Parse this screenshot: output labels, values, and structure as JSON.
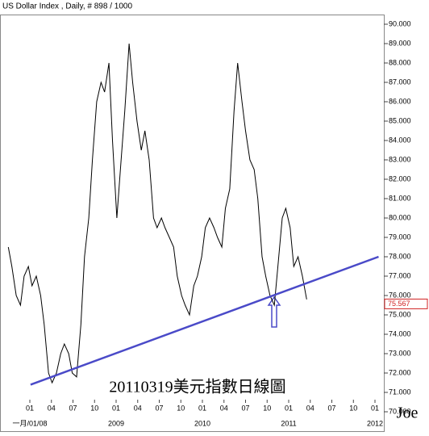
{
  "chart_data": {
    "type": "line",
    "title": "US Dollar Index , Daily, # 898 / 1000",
    "annotation": "20110319美元指數日線圖",
    "signature": "Joe",
    "color": "#000000",
    "x": [
      -3.0,
      -2.5,
      -1.9,
      -1.3,
      -0.8,
      -0.2,
      0.3,
      0.9,
      1.5,
      2.0,
      2.6,
      3.1,
      3.7,
      4.3,
      4.8,
      5.4,
      5.9,
      6.5,
      7.1,
      7.6,
      8.2,
      8.7,
      9.3,
      9.9,
      10.4,
      11.0,
      11.5,
      12.1,
      12.7,
      13.2,
      13.8,
      14.3,
      14.9,
      15.5,
      16.0,
      16.6,
      17.2,
      17.7,
      18.3,
      18.8,
      19.4,
      20.0,
      20.5,
      21.1,
      21.6,
      22.2,
      22.8,
      23.3,
      23.9,
      24.4,
      25.0,
      25.6,
      26.1,
      26.7,
      27.2,
      27.8,
      28.4,
      28.9,
      29.5,
      30.0,
      30.6,
      31.2,
      31.7,
      32.3,
      32.8,
      33.4,
      34.0,
      34.5,
      35.1,
      35.6,
      36.2,
      36.7,
      37.3,
      37.9,
      38.5
    ],
    "values": [
      78.5,
      77.5,
      76.0,
      75.5,
      77.0,
      77.5,
      76.5,
      77.0,
      76.0,
      74.5,
      72.0,
      71.5,
      72.0,
      73.0,
      73.5,
      73.0,
      72.0,
      71.8,
      74.5,
      78.0,
      80.0,
      83.0,
      86.0,
      87.0,
      86.5,
      88.0,
      84.0,
      80.0,
      83.0,
      85.5,
      89.0,
      87.0,
      85.0,
      83.5,
      84.5,
      83.0,
      80.0,
      79.5,
      80.0,
      79.5,
      79.0,
      78.5,
      77.0,
      76.0,
      75.5,
      75.0,
      76.5,
      77.0,
      78.0,
      79.5,
      80.0,
      79.5,
      79.0,
      78.5,
      80.5,
      81.5,
      85.5,
      88.0,
      86.0,
      84.5,
      83.0,
      82.5,
      81.0,
      78.0,
      77.0,
      76.0,
      75.5,
      77.5,
      80.0,
      80.5,
      79.5,
      77.5,
      78.0,
      77.0,
      75.8
    ],
    "last_value": 75.567,
    "trendline": {
      "color": "#4a4ac8",
      "x": [
        0.1,
        48.5
      ],
      "values": [
        71.4,
        78.0
      ]
    },
    "xlim": [
      -4.15,
      49.12
    ],
    "xticks": [
      {
        "value": 0,
        "label": "01"
      },
      {
        "value": 3,
        "label": "04"
      },
      {
        "value": 6,
        "label": "07"
      },
      {
        "value": 9,
        "label": "10"
      },
      {
        "value": 12,
        "label": "01"
      },
      {
        "value": 15,
        "label": "04"
      },
      {
        "value": 18,
        "label": "07"
      },
      {
        "value": 21,
        "label": "10"
      },
      {
        "value": 24,
        "label": "01"
      },
      {
        "value": 27,
        "label": "04"
      },
      {
        "value": 30,
        "label": "07"
      },
      {
        "value": 33,
        "label": "10"
      },
      {
        "value": 36,
        "label": "01"
      },
      {
        "value": 39,
        "label": "04"
      },
      {
        "value": 42,
        "label": "07"
      },
      {
        "value": 45,
        "label": "10"
      },
      {
        "value": 48,
        "label": "01"
      }
    ],
    "year_labels": [
      {
        "value": 0,
        "label": "一月/01/08"
      },
      {
        "value": 12,
        "label": "2009"
      },
      {
        "value": 24,
        "label": "2010"
      },
      {
        "value": 36,
        "label": "2011"
      },
      {
        "value": 48,
        "label": "2012"
      }
    ],
    "ylim": [
      70,
      90
    ],
    "yticks": [
      {
        "value": 70,
        "label": "70.000"
      },
      {
        "value": 71,
        "label": "71.000"
      },
      {
        "value": 72,
        "label": "72.000"
      },
      {
        "value": 73,
        "label": "73.000"
      },
      {
        "value": 74,
        "label": "74.000"
      },
      {
        "value": 75,
        "label": "75.000"
      },
      {
        "value": 76,
        "label": "76.000"
      },
      {
        "value": 77,
        "label": "77.000"
      },
      {
        "value": 78,
        "label": "78.000"
      },
      {
        "value": 79,
        "label": "79.000"
      },
      {
        "value": 80,
        "label": "80.000"
      },
      {
        "value": 81,
        "label": "81.000"
      },
      {
        "value": 82,
        "label": "82.000"
      },
      {
        "value": 83,
        "label": "83.000"
      },
      {
        "value": 84,
        "label": "84.000"
      },
      {
        "value": 85,
        "label": "85.000"
      },
      {
        "value": 86,
        "label": "86.000"
      },
      {
        "value": 87,
        "label": "87.000"
      },
      {
        "value": 88,
        "label": "88.000"
      },
      {
        "value": 89,
        "label": "89.000"
      },
      {
        "value": 90,
        "label": "90.000"
      }
    ]
  }
}
